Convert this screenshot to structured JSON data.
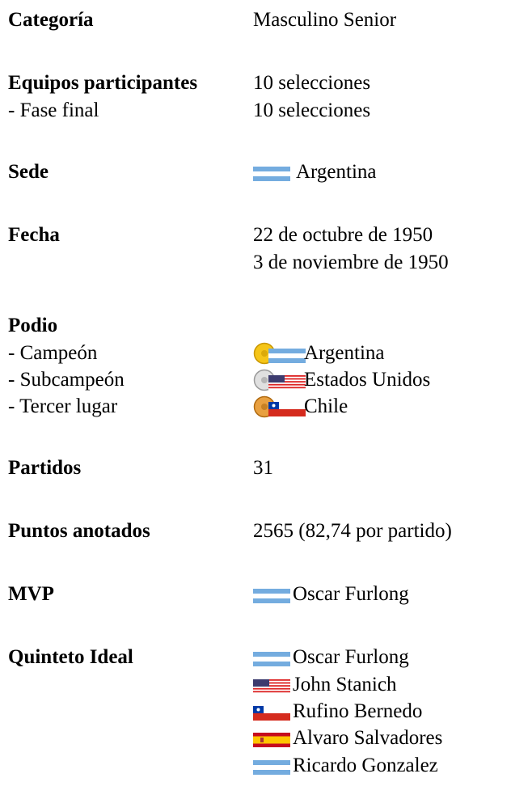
{
  "rows": [
    {
      "label": "Categoría",
      "values": [
        "Masculino Senior"
      ]
    },
    {
      "label": "Equipos participantes",
      "values": [
        "10 selecciones"
      ]
    },
    {
      "label": "- Fase final",
      "values": [
        "10 selecciones"
      ]
    },
    {
      "label": "Sede",
      "values": [
        "Argentina"
      ]
    },
    {
      "label": "Fecha",
      "values": [
        "22 de octubre de 1950",
        "3 de noviembre de 1950"
      ]
    },
    {
      "label": "Podio",
      "values": []
    },
    {
      "label": "- Campeón",
      "values": [
        "Argentina"
      ]
    },
    {
      "label": "- Subcampeón",
      "values": [
        "Estados Unidos"
      ]
    },
    {
      "label": "- Tercer lugar",
      "values": [
        "Chile"
      ]
    },
    {
      "label": "Partidos",
      "values": [
        "31"
      ]
    },
    {
      "label": "Puntos anotados",
      "values": [
        "2565 (82,74 por partido)"
      ]
    },
    {
      "label": "MVP",
      "values": [
        "Oscar Furlong"
      ]
    },
    {
      "label": "Quinteto Ideal",
      "values": [
        "Oscar Furlong",
        "John Stanich",
        "Rufino Bernedo",
        "Alvaro Salvadores",
        "Ricardo Gonzalez"
      ]
    }
  ]
}
